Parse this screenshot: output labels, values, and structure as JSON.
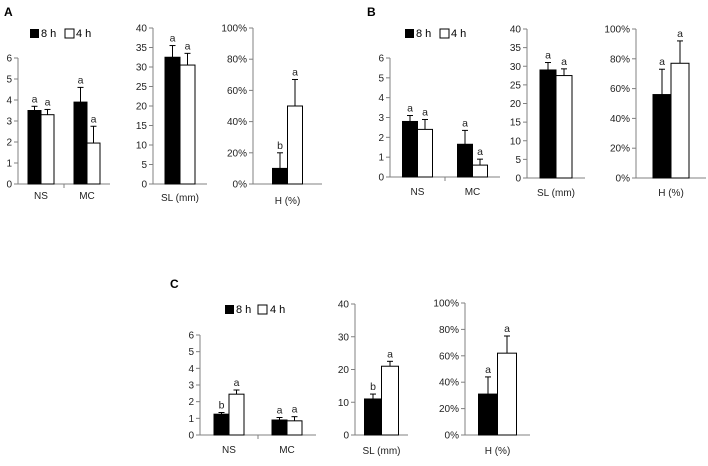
{
  "legend": {
    "series_8h": "8 h",
    "series_4h": "4 h"
  },
  "colors": {
    "s8h": "#000000",
    "s4h": "#ffffff",
    "axis": "#808080"
  },
  "chart_data": [
    {
      "panel": "A",
      "type": "bar",
      "categories": [
        "NS",
        "MC"
      ],
      "ylim": [
        0,
        6
      ],
      "yticks": [
        "0",
        "1",
        "2",
        "3",
        "4",
        "5",
        "6"
      ],
      "series": [
        {
          "name": "8 h",
          "values": [
            3.5,
            3.9
          ],
          "errors": [
            0.2,
            0.7
          ],
          "letters": [
            "a",
            "a"
          ]
        },
        {
          "name": "4 h",
          "values": [
            3.3,
            1.95
          ],
          "errors": [
            0.25,
            0.8
          ],
          "letters": [
            "a",
            "a"
          ]
        }
      ]
    },
    {
      "panel": "A",
      "type": "bar",
      "categories": [
        ""
      ],
      "xlabel": "SL (mm)",
      "ylim": [
        0,
        40
      ],
      "yticks": [
        "0",
        "5",
        "10",
        "15",
        "20",
        "25",
        "30",
        "35",
        "40"
      ],
      "series": [
        {
          "name": "8 h",
          "values": [
            32.5
          ],
          "errors": [
            3.0
          ],
          "letters": [
            "a"
          ]
        },
        {
          "name": "4 h",
          "values": [
            30.5
          ],
          "errors": [
            3.0
          ],
          "letters": [
            "a"
          ]
        }
      ]
    },
    {
      "panel": "A",
      "type": "bar",
      "categories": [
        ""
      ],
      "xlabel": "H (%)",
      "ylim": [
        0,
        100
      ],
      "yticks": [
        "0%",
        "20%",
        "40%",
        "60%",
        "80%",
        "100%"
      ],
      "series": [
        {
          "name": "8 h",
          "values": [
            10
          ],
          "errors": [
            10
          ],
          "letters": [
            "b"
          ]
        },
        {
          "name": "4 h",
          "values": [
            50
          ],
          "errors": [
            17
          ],
          "letters": [
            "a"
          ]
        }
      ]
    },
    {
      "panel": "B",
      "type": "bar",
      "categories": [
        "NS",
        "MC"
      ],
      "ylim": [
        0,
        6
      ],
      "yticks": [
        "0",
        "1",
        "2",
        "3",
        "4",
        "5",
        "6"
      ],
      "series": [
        {
          "name": "8 h",
          "values": [
            2.8,
            1.65
          ],
          "errors": [
            0.3,
            0.7
          ],
          "letters": [
            "a",
            "a"
          ]
        },
        {
          "name": "4 h",
          "values": [
            2.4,
            0.6
          ],
          "errors": [
            0.5,
            0.3
          ],
          "letters": [
            "a",
            "a"
          ]
        }
      ]
    },
    {
      "panel": "B",
      "type": "bar",
      "categories": [
        ""
      ],
      "xlabel": "SL (mm)",
      "ylim": [
        0,
        40
      ],
      "yticks": [
        "0",
        "5",
        "10",
        "15",
        "20",
        "25",
        "30",
        "35",
        "40"
      ],
      "series": [
        {
          "name": "8 h",
          "values": [
            29
          ],
          "errors": [
            2.0
          ],
          "letters": [
            "a"
          ]
        },
        {
          "name": "4 h",
          "values": [
            27.5
          ],
          "errors": [
            1.8
          ],
          "letters": [
            "a"
          ]
        }
      ]
    },
    {
      "panel": "B",
      "type": "bar",
      "categories": [
        ""
      ],
      "xlabel": "H (%)",
      "ylim": [
        0,
        100
      ],
      "yticks": [
        "0%",
        "20%",
        "40%",
        "60%",
        "80%",
        "100%"
      ],
      "series": [
        {
          "name": "8 h",
          "values": [
            56
          ],
          "errors": [
            17
          ],
          "letters": [
            "a"
          ]
        },
        {
          "name": "4 h",
          "values": [
            77
          ],
          "errors": [
            15
          ],
          "letters": [
            "a"
          ]
        }
      ]
    },
    {
      "panel": "C",
      "type": "bar",
      "categories": [
        "NS",
        "MC"
      ],
      "ylim": [
        0,
        6
      ],
      "yticks": [
        "0",
        "1",
        "2",
        "3",
        "4",
        "5",
        "6"
      ],
      "series": [
        {
          "name": "8 h",
          "values": [
            1.25,
            0.9
          ],
          "errors": [
            0.1,
            0.15
          ],
          "letters": [
            "b",
            "a"
          ]
        },
        {
          "name": "4 h",
          "values": [
            2.45,
            0.85
          ],
          "errors": [
            0.25,
            0.25
          ],
          "letters": [
            "a",
            "a"
          ]
        }
      ]
    },
    {
      "panel": "C",
      "type": "bar",
      "categories": [
        ""
      ],
      "xlabel": "SL (mm)",
      "ylim": [
        0,
        40
      ],
      "yticks": [
        "0",
        "10",
        "20",
        "30",
        "40"
      ],
      "series": [
        {
          "name": "8 h",
          "values": [
            11
          ],
          "errors": [
            1.5
          ],
          "letters": [
            "b"
          ]
        },
        {
          "name": "4 h",
          "values": [
            21
          ],
          "errors": [
            1.5
          ],
          "letters": [
            "a"
          ]
        }
      ]
    },
    {
      "panel": "C",
      "type": "bar",
      "categories": [
        ""
      ],
      "xlabel": "H (%)",
      "ylim": [
        0,
        100
      ],
      "yticks": [
        "0%",
        "20%",
        "40%",
        "60%",
        "80%",
        "100%"
      ],
      "series": [
        {
          "name": "8 h",
          "values": [
            31
          ],
          "errors": [
            13
          ],
          "letters": [
            "a"
          ]
        },
        {
          "name": "4 h",
          "values": [
            62
          ],
          "errors": [
            13
          ],
          "letters": [
            "a"
          ]
        }
      ]
    }
  ]
}
